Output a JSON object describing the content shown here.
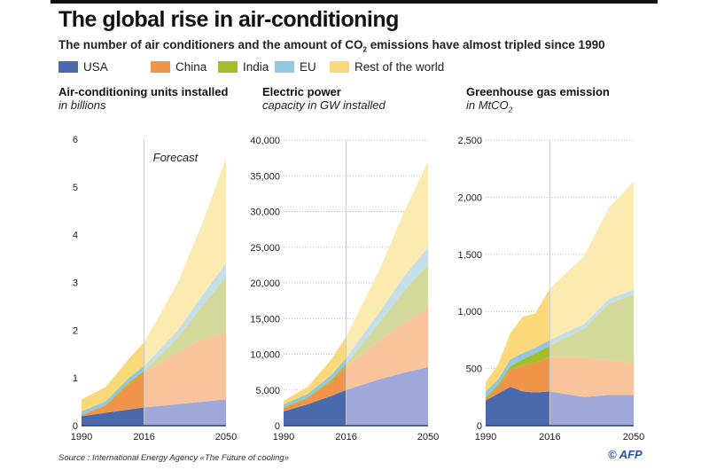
{
  "header": {
    "title": "The global rise in air-conditioning",
    "subtitle_pre": "The number of air conditioners and the amount of CO",
    "subtitle_sub": "2",
    "subtitle_post": " emissions have almost tripled since 1990"
  },
  "legend": [
    {
      "label": "USA",
      "color": "#4a6aad"
    },
    {
      "label": "China",
      "color": "#f0944a"
    },
    {
      "label": "India",
      "color": "#a5bd2a"
    },
    {
      "label": "EU",
      "color": "#93c6e0"
    },
    {
      "label": "Rest of the world",
      "color": "#fbd97a"
    }
  ],
  "forecast_colors": [
    "#9fa8d8",
    "#f9c49b",
    "#d3d99a",
    "#c4dfe8",
    "#fcebb0"
  ],
  "chart_data": [
    {
      "type": "area",
      "stacked": true,
      "title": "Air-conditioning units installed",
      "subtitle": "in billions",
      "annotation": "Forecast",
      "forecast_from": 2016,
      "x": [
        1990,
        2000,
        2010,
        2016,
        2030,
        2040,
        2050
      ],
      "xticks": [
        "1990",
        "2016",
        "2050"
      ],
      "ylim": [
        0,
        6
      ],
      "yticks": [
        "0",
        "1",
        "2",
        "3",
        "4",
        "5",
        "6"
      ],
      "ytick_values": [
        0,
        1,
        2,
        3,
        4,
        5,
        6
      ],
      "grid": false,
      "series": [
        {
          "name": "USA",
          "values": [
            0.2,
            0.27,
            0.34,
            0.38,
            0.45,
            0.5,
            0.55
          ]
        },
        {
          "name": "China",
          "values": [
            0.02,
            0.15,
            0.55,
            0.72,
            1.1,
            1.3,
            1.4
          ]
        },
        {
          "name": "India",
          "values": [
            0.01,
            0.01,
            0.03,
            0.05,
            0.3,
            0.7,
            1.15
          ]
        },
        {
          "name": "EU",
          "values": [
            0.07,
            0.08,
            0.1,
            0.1,
            0.15,
            0.22,
            0.3
          ]
        },
        {
          "name": "Rest of the world",
          "values": [
            0.25,
            0.3,
            0.4,
            0.5,
            1.0,
            1.5,
            2.2
          ]
        }
      ]
    },
    {
      "type": "area",
      "stacked": true,
      "title": "Electric power",
      "subtitle": "capacity in GW installed",
      "forecast_from": 2016,
      "x": [
        1990,
        2000,
        2010,
        2016,
        2030,
        2040,
        2050
      ],
      "xticks": [
        "1990",
        "2016",
        "2050"
      ],
      "ylim": [
        0,
        40000
      ],
      "yticks": [
        "0",
        "5,000",
        "10,000",
        "15,000",
        "20,000",
        "25,000",
        "30,000",
        "35,000",
        "40,000"
      ],
      "ytick_values": [
        0,
        5000,
        10000,
        15000,
        20000,
        25000,
        30000,
        35000,
        40000
      ],
      "grid": true,
      "series": [
        {
          "name": "USA",
          "values": [
            2000,
            3000,
            4200,
            5000,
            6500,
            7400,
            8200
          ]
        },
        {
          "name": "China",
          "values": [
            500,
            800,
            2000,
            3300,
            5500,
            7000,
            8300
          ]
        },
        {
          "name": "India",
          "values": [
            100,
            150,
            250,
            400,
            2500,
            4500,
            6000
          ]
        },
        {
          "name": "EU",
          "values": [
            400,
            500,
            700,
            800,
            1500,
            2000,
            2500
          ]
        },
        {
          "name": "Rest of the world",
          "values": [
            500,
            1000,
            2200,
            3000,
            6000,
            9000,
            12000
          ]
        }
      ]
    },
    {
      "type": "area",
      "stacked": true,
      "title": "Greenhouse gas emission",
      "subtitle_pre": "in MtCO",
      "subtitle_sub": "2",
      "forecast_from": 2016,
      "x": [
        1990,
        1995,
        2000,
        2005,
        2010,
        2016,
        2030,
        2040,
        2050
      ],
      "xticks": [
        "1990",
        "2016",
        "2050"
      ],
      "ylim": [
        0,
        2500
      ],
      "yticks": [
        "0",
        "500",
        "1,000",
        "1,500",
        "2,000",
        "2,500"
      ],
      "ytick_values": [
        0,
        500,
        1000,
        1500,
        2000,
        2500
      ],
      "grid": true,
      "series": [
        {
          "name": "USA",
          "values": [
            220,
            280,
            340,
            300,
            290,
            300,
            250,
            270,
            270
          ]
        },
        {
          "name": "China",
          "values": [
            20,
            60,
            150,
            230,
            260,
            300,
            350,
            300,
            280
          ]
        },
        {
          "name": "India",
          "values": [
            10,
            15,
            30,
            50,
            80,
            100,
            250,
            500,
            600
          ]
        },
        {
          "name": "EU",
          "values": [
            50,
            50,
            60,
            55,
            50,
            50,
            40,
            40,
            40
          ]
        },
        {
          "name": "Rest of the world",
          "values": [
            80,
            130,
            230,
            320,
            300,
            450,
            600,
            800,
            950
          ]
        }
      ]
    }
  ],
  "footer": {
    "source": "Source : International Energy Agency «The Future of cooling»",
    "credit": "© AFP"
  }
}
